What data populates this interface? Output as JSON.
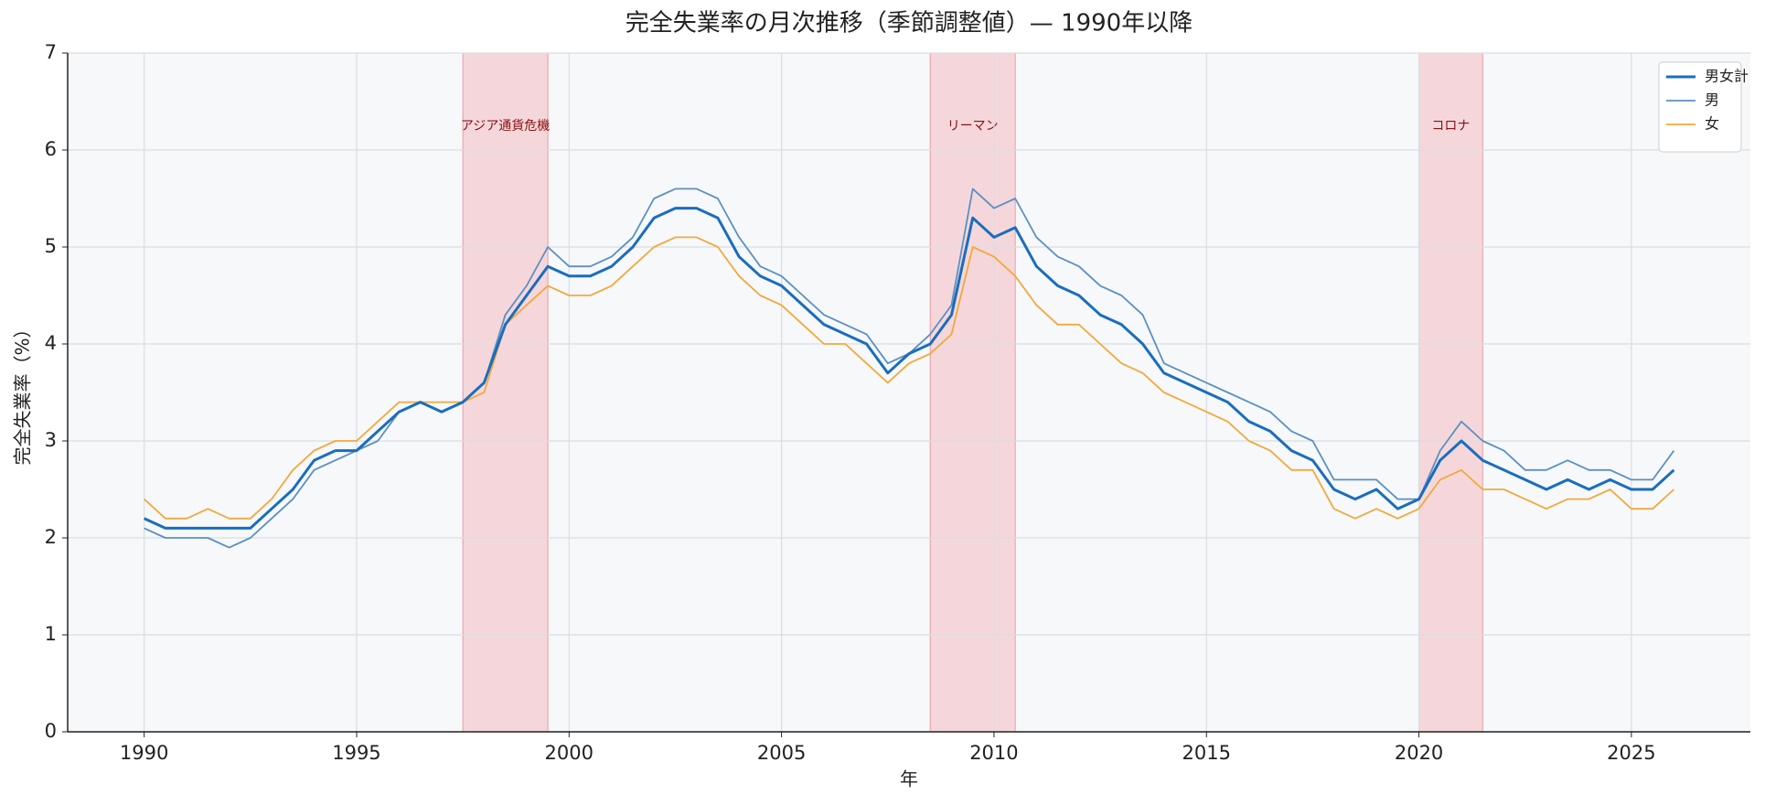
{
  "chart_data": {
    "type": "line",
    "title": "完全失業率の月次推移（季節調整値）— 1990年以降",
    "xlabel": "年",
    "ylabel": "完全失業率（%）",
    "xlim": [
      1988.2,
      2027.8
    ],
    "ylim": [
      0,
      7
    ],
    "xticks": [
      1990,
      1995,
      2000,
      2005,
      2010,
      2015,
      2020,
      2025
    ],
    "yticks": [
      0,
      1,
      2,
      3,
      4,
      5,
      6,
      7
    ],
    "grid": true,
    "legend": "upper right",
    "shaded": [
      {
        "start": 1997.5,
        "end": 1999.5,
        "label": "アジア通貨危機"
      },
      {
        "start": 2008.5,
        "end": 2010.5,
        "label": "リーマン"
      },
      {
        "start": 2020,
        "end": 2021.5,
        "label": "コロナ"
      }
    ],
    "x": [
      1990,
      1990.5,
      1991,
      1991.5,
      1992,
      1992.5,
      1993,
      1993.5,
      1994,
      1994.5,
      1995,
      1995.5,
      1996,
      1996.5,
      1997,
      1997.5,
      1998,
      1998.5,
      1999,
      1999.5,
      2000,
      2000.5,
      2001,
      2001.5,
      2002,
      2002.5,
      2003,
      2003.5,
      2004,
      2004.5,
      2005,
      2005.5,
      2006,
      2006.5,
      2007,
      2007.5,
      2008,
      2008.5,
      2009,
      2009.5,
      2010,
      2010.5,
      2011,
      2011.5,
      2012,
      2012.5,
      2013,
      2013.5,
      2014,
      2014.5,
      2015,
      2015.5,
      2016,
      2016.5,
      2017,
      2017.5,
      2018,
      2018.5,
      2019,
      2019.5,
      2020,
      2020.5,
      2021,
      2021.5,
      2022,
      2022.5,
      2023,
      2023.5,
      2024,
      2024.5,
      2025,
      2025.5,
      2026
    ],
    "series": [
      {
        "name": "男女計",
        "color": "#1a6dbd",
        "width": 3,
        "values": [
          2.2,
          2.1,
          2.1,
          2.1,
          2.1,
          2.1,
          2.3,
          2.5,
          2.8,
          2.9,
          2.9,
          3.1,
          3.3,
          3.4,
          3.3,
          3.4,
          3.6,
          4.2,
          4.5,
          4.8,
          4.7,
          4.7,
          4.8,
          5.0,
          5.3,
          5.4,
          5.4,
          5.3,
          4.9,
          4.7,
          4.6,
          4.4,
          4.2,
          4.1,
          4.0,
          3.7,
          3.9,
          4.0,
          4.3,
          5.3,
          5.1,
          5.2,
          4.8,
          4.6,
          4.5,
          4.3,
          4.2,
          4.0,
          3.7,
          3.6,
          3.5,
          3.4,
          3.2,
          3.1,
          2.9,
          2.8,
          2.5,
          2.4,
          2.5,
          2.3,
          2.4,
          2.8,
          3.0,
          2.8,
          2.7,
          2.6,
          2.5,
          2.6,
          2.5,
          2.6,
          2.5,
          2.5,
          2.7
        ]
      },
      {
        "name": "男",
        "color": "#5b90c2",
        "width": 1.8,
        "values": [
          2.1,
          2.0,
          2.0,
          2.0,
          1.9,
          2.0,
          2.2,
          2.4,
          2.7,
          2.8,
          2.9,
          3.0,
          3.3,
          3.4,
          3.3,
          3.4,
          3.6,
          4.3,
          4.6,
          5.0,
          4.8,
          4.8,
          4.9,
          5.1,
          5.5,
          5.6,
          5.6,
          5.5,
          5.1,
          4.8,
          4.7,
          4.5,
          4.3,
          4.2,
          4.1,
          3.8,
          3.9,
          4.1,
          4.4,
          5.6,
          5.4,
          5.5,
          5.1,
          4.9,
          4.8,
          4.6,
          4.5,
          4.3,
          3.8,
          3.7,
          3.6,
          3.5,
          3.4,
          3.3,
          3.1,
          3.0,
          2.6,
          2.6,
          2.6,
          2.4,
          2.4,
          2.9,
          3.2,
          3.0,
          2.9,
          2.7,
          2.7,
          2.8,
          2.7,
          2.7,
          2.6,
          2.6,
          2.9
        ]
      },
      {
        "name": "女",
        "color": "#f2a93b",
        "width": 1.8,
        "values": [
          2.4,
          2.2,
          2.2,
          2.3,
          2.2,
          2.2,
          2.4,
          2.7,
          2.9,
          3.0,
          3.0,
          3.2,
          3.4,
          3.4,
          3.4,
          3.4,
          3.5,
          4.2,
          4.4,
          4.6,
          4.5,
          4.5,
          4.6,
          4.8,
          5.0,
          5.1,
          5.1,
          5.0,
          4.7,
          4.5,
          4.4,
          4.2,
          4.0,
          4.0,
          3.8,
          3.6,
          3.8,
          3.9,
          4.1,
          5.0,
          4.9,
          4.7,
          4.4,
          4.2,
          4.2,
          4.0,
          3.8,
          3.7,
          3.5,
          3.4,
          3.3,
          3.2,
          3.0,
          2.9,
          2.7,
          2.7,
          2.3,
          2.2,
          2.3,
          2.2,
          2.3,
          2.6,
          2.7,
          2.5,
          2.5,
          2.4,
          2.3,
          2.4,
          2.4,
          2.5,
          2.3,
          2.3,
          2.5
        ]
      }
    ]
  }
}
